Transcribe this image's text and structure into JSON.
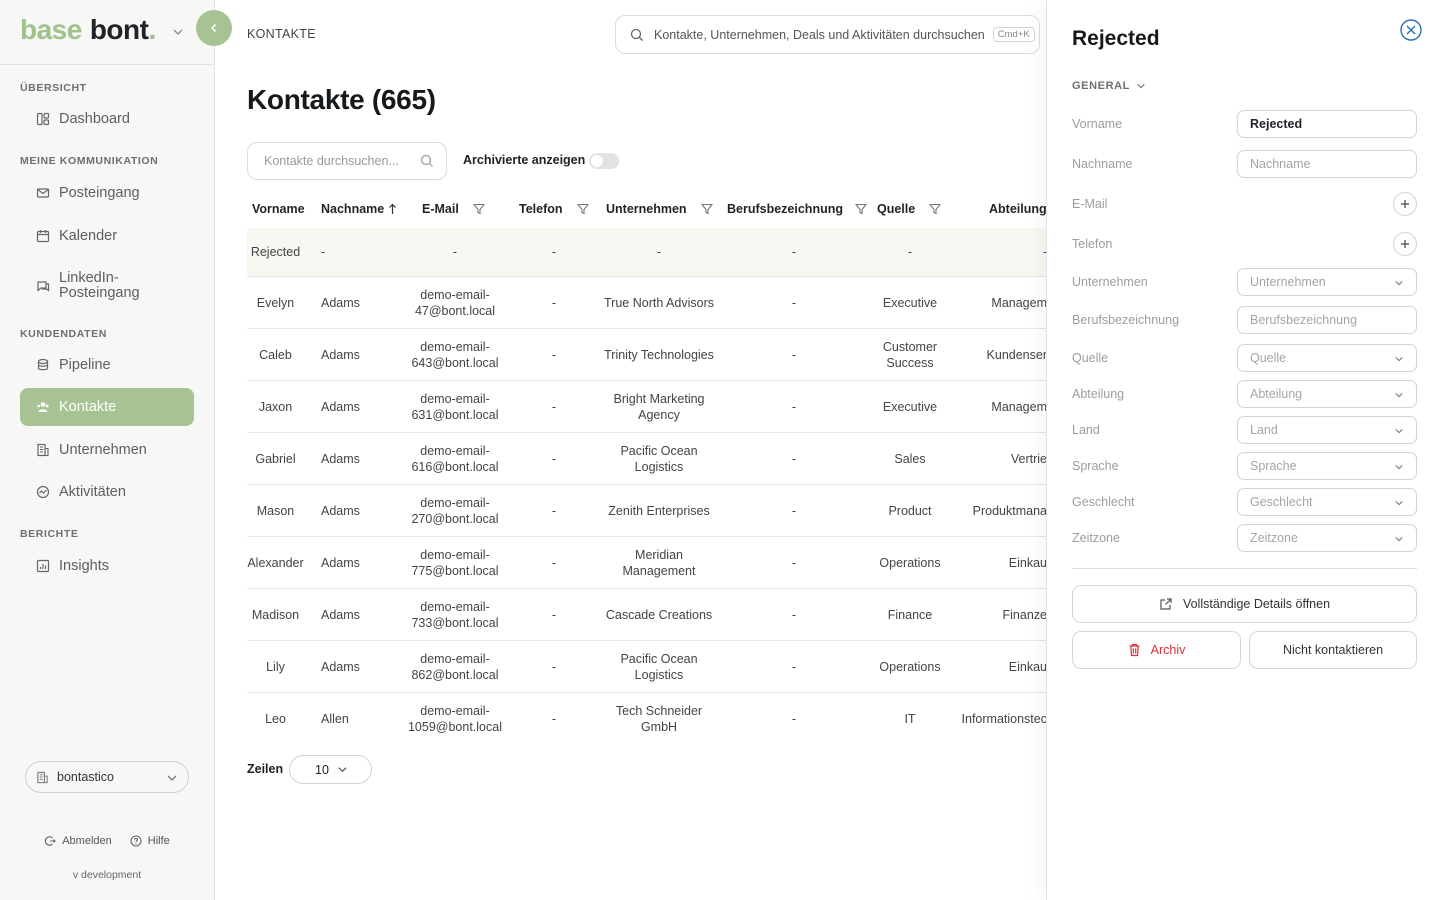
{
  "brand": {
    "part1": "base",
    "part2": "bont",
    "dot": "."
  },
  "sidebar": {
    "sections": [
      {
        "label": "ÜBERSICHT",
        "items": [
          {
            "label": "Dashboard",
            "icon": "dashboard-icon"
          }
        ]
      },
      {
        "label": "MEINE KOMMUNIKATION",
        "items": [
          {
            "label": "Posteingang",
            "icon": "mail-icon"
          },
          {
            "label": "Kalender",
            "icon": "calendar-icon"
          },
          {
            "label": "LinkedIn-Posteingang",
            "icon": "chat-icon"
          }
        ]
      },
      {
        "label": "KUNDENDATEN",
        "items": [
          {
            "label": "Pipeline",
            "icon": "database-icon"
          },
          {
            "label": "Kontakte",
            "icon": "contacts-icon",
            "active": true
          },
          {
            "label": "Unternehmen",
            "icon": "building-icon"
          },
          {
            "label": "Aktivitäten",
            "icon": "activity-icon"
          }
        ]
      },
      {
        "label": "BERICHTE",
        "items": [
          {
            "label": "Insights",
            "icon": "chart-icon"
          }
        ]
      }
    ],
    "workspace": "bontastico",
    "logout": "Abmelden",
    "help": "Hilfe",
    "version": "v development"
  },
  "header": {
    "breadcrumb": "KONTAKTE",
    "search_placeholder": "Kontakte, Unternehmen, Deals und Aktivitäten durchsuchen",
    "search_shortcut": "Cmd+K"
  },
  "main": {
    "title": "Kontakte (665)",
    "search_placeholder": "Kontakte durchsuchen...",
    "archived_label": "Archivierte anzeigen",
    "archived_on": false,
    "columns": [
      "Vorname",
      "Nachname",
      "E-Mail",
      "Telefon",
      "Unternehmen",
      "Berufsbezeichnung",
      "Quelle",
      "Abteilung"
    ],
    "rows": [
      {
        "vorname": "Rejected",
        "nachname": "-",
        "email": "-",
        "telefon": "-",
        "unternehmen": "-",
        "beruf": "-",
        "quelle": "-",
        "abteilung": "-"
      },
      {
        "vorname": "Evelyn",
        "nachname": "Adams",
        "email": "demo-email-47@bont.local",
        "telefon": "-",
        "unternehmen": "True North Advisors",
        "beruf": "-",
        "quelle": "Executive",
        "abteilung": "Managem"
      },
      {
        "vorname": "Caleb",
        "nachname": "Adams",
        "email": "demo-email-643@bont.local",
        "telefon": "-",
        "unternehmen": "Trinity Technologies",
        "beruf": "-",
        "quelle": "Customer Success",
        "abteilung": "Kundenser"
      },
      {
        "vorname": "Jaxon",
        "nachname": "Adams",
        "email": "demo-email-631@bont.local",
        "telefon": "-",
        "unternehmen": "Bright Marketing Agency",
        "beruf": "-",
        "quelle": "Executive",
        "abteilung": "Managem"
      },
      {
        "vorname": "Gabriel",
        "nachname": "Adams",
        "email": "demo-email-616@bont.local",
        "telefon": "-",
        "unternehmen": "Pacific Ocean Logistics",
        "beruf": "-",
        "quelle": "Sales",
        "abteilung": "Vertrie"
      },
      {
        "vorname": "Mason",
        "nachname": "Adams",
        "email": "demo-email-270@bont.local",
        "telefon": "-",
        "unternehmen": "Zenith Enterprises",
        "beruf": "-",
        "quelle": "Product",
        "abteilung": "Produktmana"
      },
      {
        "vorname": "Alexander",
        "nachname": "Adams",
        "email": "demo-email-775@bont.local",
        "telefon": "-",
        "unternehmen": "Meridian Management",
        "beruf": "-",
        "quelle": "Operations",
        "abteilung": "Einkau"
      },
      {
        "vorname": "Madison",
        "nachname": "Adams",
        "email": "demo-email-733@bont.local",
        "telefon": "-",
        "unternehmen": "Cascade Creations",
        "beruf": "-",
        "quelle": "Finance",
        "abteilung": "Finanze"
      },
      {
        "vorname": "Lily",
        "nachname": "Adams",
        "email": "demo-email-862@bont.local",
        "telefon": "-",
        "unternehmen": "Pacific Ocean Logistics",
        "beruf": "-",
        "quelle": "Operations",
        "abteilung": "Einkau"
      },
      {
        "vorname": "Leo",
        "nachname": "Allen",
        "email": "demo-email-1059@bont.local",
        "telefon": "-",
        "unternehmen": "Tech Schneider GmbH",
        "beruf": "-",
        "quelle": "IT",
        "abteilung": "Informationstec"
      }
    ],
    "rows_label": "Zeilen",
    "rows_value": "10"
  },
  "drawer": {
    "title": "Rejected",
    "section": "GENERAL",
    "fields": {
      "vorname": {
        "label": "Vorname",
        "value": "Rejected"
      },
      "nachname": {
        "label": "Nachname",
        "placeholder": "Nachname"
      },
      "email": {
        "label": "E-Mail"
      },
      "telefon": {
        "label": "Telefon"
      },
      "unternehmen": {
        "label": "Unternehmen",
        "placeholder": "Unternehmen"
      },
      "beruf": {
        "label": "Berufsbezeichnung",
        "placeholder": "Berufsbezeichnung"
      },
      "quelle": {
        "label": "Quelle",
        "placeholder": "Quelle"
      },
      "abteilung": {
        "label": "Abteilung",
        "placeholder": "Abteilung"
      },
      "land": {
        "label": "Land",
        "placeholder": "Land"
      },
      "sprache": {
        "label": "Sprache",
        "placeholder": "Sprache"
      },
      "geschlecht": {
        "label": "Geschlecht",
        "placeholder": "Geschlecht"
      },
      "zeitzone": {
        "label": "Zeitzone",
        "placeholder": "Zeitzone"
      }
    },
    "open_details": "Vollständige Details öffnen",
    "archive": "Archiv",
    "no_contact": "Nicht kontaktieren"
  },
  "colors": {
    "accent": "#a7c394",
    "danger": "#d6303a",
    "close": "#2a6fb4"
  }
}
